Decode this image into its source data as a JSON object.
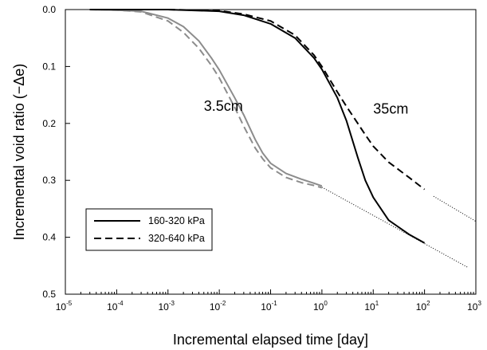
{
  "chart_data": {
    "type": "line",
    "xlabel": "Incremental elapsed time [day]",
    "ylabel": "Incremental void ratio (−Δe)",
    "xscale": "log",
    "yaxis": "inverted",
    "xlim": [
      1e-05,
      1000
    ],
    "ylim": [
      0.0,
      0.5
    ],
    "x_ticks": [
      {
        "base": "10",
        "exp": "-5",
        "value": 1e-05
      },
      {
        "base": "10",
        "exp": "-4",
        "value": 0.0001
      },
      {
        "base": "10",
        "exp": "-3",
        "value": 0.001
      },
      {
        "base": "10",
        "exp": "-2",
        "value": 0.01
      },
      {
        "base": "10",
        "exp": "-1",
        "value": 0.1
      },
      {
        "base": "10",
        "exp": "0",
        "value": 1
      },
      {
        "base": "10",
        "exp": "1",
        "value": 10
      },
      {
        "base": "10",
        "exp": "2",
        "value": 100
      },
      {
        "base": "10",
        "exp": "3",
        "value": 1000
      }
    ],
    "y_ticks": [
      {
        "label": "0.0",
        "value": 0.0
      },
      {
        "label": "0.1",
        "value": 0.1
      },
      {
        "label": "0.2",
        "value": 0.2
      },
      {
        "label": "0.3",
        "value": 0.3
      },
      {
        "label": "0.4",
        "value": 0.4
      },
      {
        "label": "0.5",
        "value": 0.5
      }
    ],
    "legend": {
      "placement": "bottom-left",
      "entries": [
        {
          "label": "160-320 kPa",
          "style": "solid"
        },
        {
          "label": "320-640 kPa",
          "style": "dashed"
        }
      ]
    },
    "annotations": [
      {
        "text": "3.5cm",
        "color": "#8c8c8c",
        "x": 0.005,
        "y": 0.178
      },
      {
        "text": "35cm",
        "color": "#000000",
        "x": 10,
        "y": 0.183
      }
    ],
    "series": [
      {
        "group": "3.5cm",
        "load": "160-320 kPa",
        "style": "solid",
        "color": "#8c8c8c",
        "x": [
          3e-05,
          0.0001,
          0.0003,
          0.001,
          0.002,
          0.004,
          0.007,
          0.01,
          0.02,
          0.03,
          0.05,
          0.07,
          0.1,
          0.2,
          0.4,
          0.7,
          1.0
        ],
        "y": [
          0.0,
          0.001,
          0.003,
          0.015,
          0.03,
          0.055,
          0.085,
          0.106,
          0.155,
          0.185,
          0.228,
          0.252,
          0.27,
          0.288,
          0.298,
          0.305,
          0.31
        ]
      },
      {
        "group": "3.5cm",
        "load": "320-640 kPa",
        "style": "dashed",
        "color": "#8c8c8c",
        "x": [
          3e-05,
          0.0001,
          0.0003,
          0.001,
          0.002,
          0.004,
          0.007,
          0.01,
          0.02,
          0.03,
          0.05,
          0.07,
          0.1,
          0.2,
          0.4,
          0.7,
          1.0
        ],
        "y": [
          0.0,
          0.001,
          0.004,
          0.02,
          0.04,
          0.068,
          0.098,
          0.12,
          0.172,
          0.205,
          0.243,
          0.262,
          0.278,
          0.295,
          0.304,
          0.309,
          0.313
        ]
      },
      {
        "group": "35cm",
        "load": "160-320 kPa",
        "style": "solid",
        "color": "#000000",
        "x": [
          3e-05,
          0.001,
          0.01,
          0.03,
          0.1,
          0.3,
          0.7,
          1.0,
          2.0,
          3.0,
          5.0,
          7.0,
          10,
          20,
          50,
          100
        ],
        "y": [
          0.0,
          0.0,
          0.003,
          0.01,
          0.025,
          0.05,
          0.085,
          0.105,
          0.155,
          0.195,
          0.26,
          0.3,
          0.33,
          0.37,
          0.395,
          0.41
        ]
      },
      {
        "group": "35cm",
        "load": "320-640 kPa",
        "style": "dashed",
        "color": "#000000",
        "x": [
          3e-05,
          0.001,
          0.01,
          0.03,
          0.1,
          0.3,
          0.7,
          1.0,
          2.0,
          3.0,
          5.0,
          7.0,
          10,
          20,
          50,
          100
        ],
        "y": [
          0.0,
          0.0,
          0.002,
          0.008,
          0.02,
          0.045,
          0.08,
          0.1,
          0.145,
          0.17,
          0.2,
          0.22,
          0.24,
          0.268,
          0.295,
          0.316
        ]
      }
    ],
    "extrapolations": [
      {
        "style": "dotted",
        "x": [
          1.0,
          700
        ],
        "y": [
          0.312,
          0.453
        ]
      },
      {
        "style": "dotted",
        "x": [
          150,
          1000
        ],
        "y": [
          0.328,
          0.372
        ]
      }
    ]
  }
}
